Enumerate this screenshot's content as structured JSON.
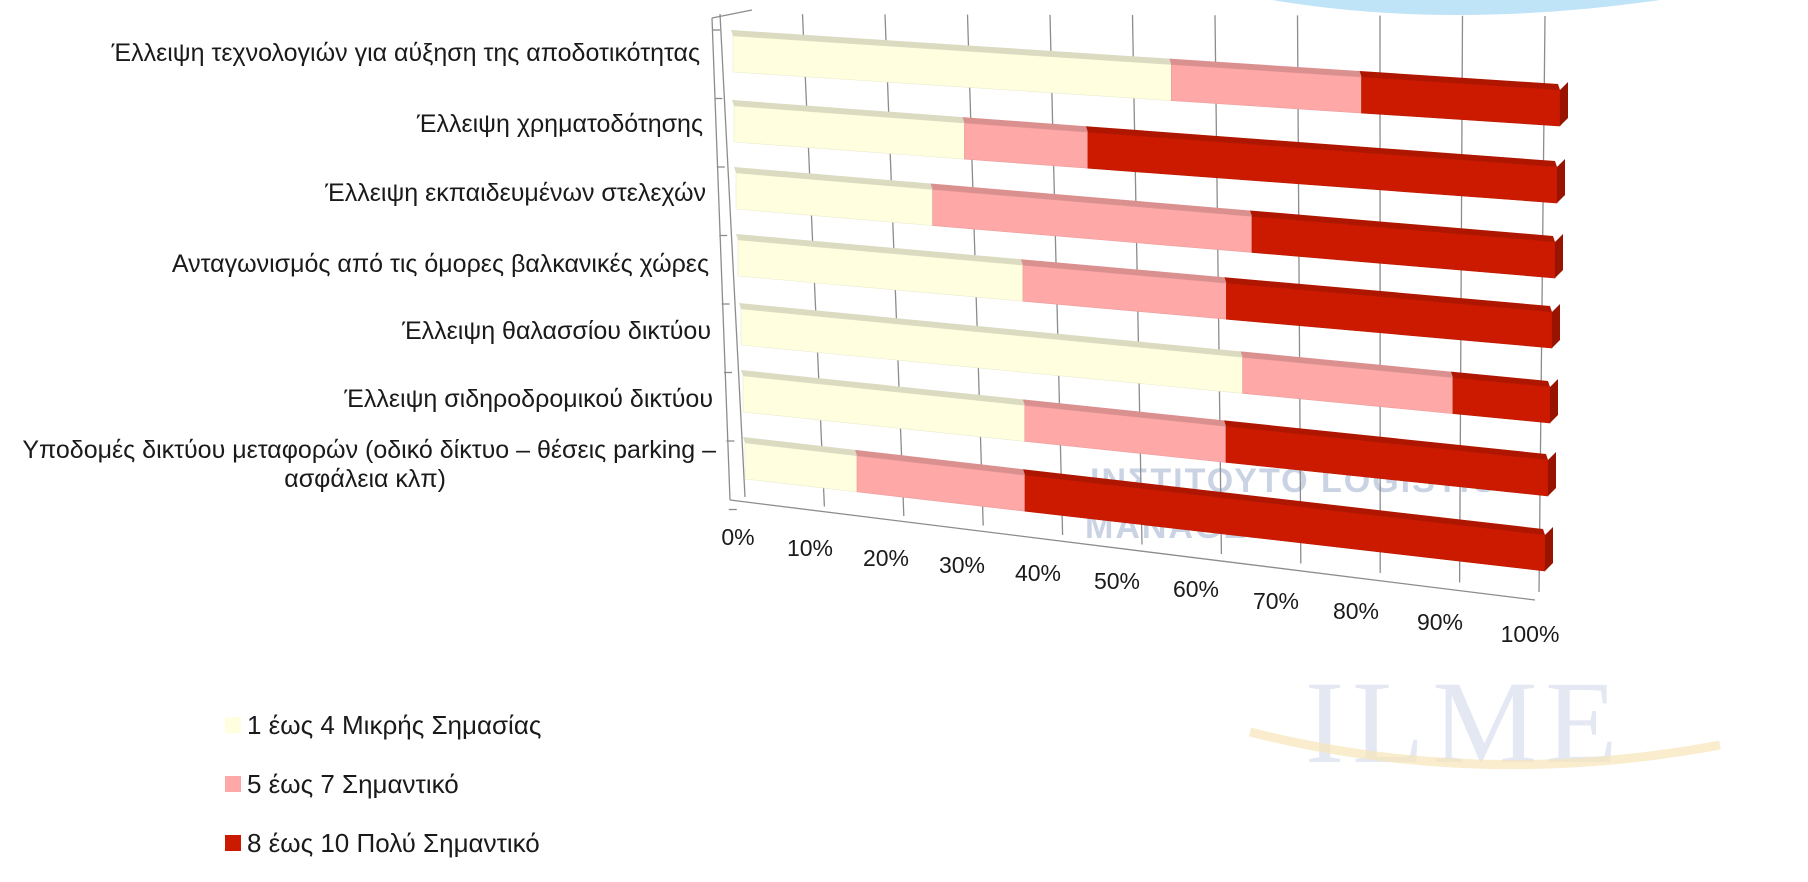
{
  "chart_data": {
    "type": "bar",
    "orientation": "horizontal",
    "stacked": "percent",
    "three_d": true,
    "categories": [
      "Έλλειψη τεχνολογιών για αύξηση της αποδοτικότητας",
      "Έλλειψη χρηματοδότησης",
      "Έλλειψη εκπαιδευμένων στελεχών",
      "Ανταγωνισμός από τις όμορες βαλκανικές χώρες",
      "Έλλειψη θαλασσίου δικτύου",
      "Έλλειψη σιδηροδρομικού δικτύου",
      "Υποδομές δικτύου μεταφορών (οδικό δίκτυο – θέσεις parking – ασφάλεια κλπ)"
    ],
    "category_lines": [
      [
        "Έλλειψη τεχνολογιών για αύξηση της αποδοτικότητας"
      ],
      [
        "Έλλειψη χρηματοδότησης"
      ],
      [
        "Έλλειψη εκπαιδευμένων στελεχών"
      ],
      [
        "Ανταγωνισμός από τις όμορες βαλκανικές χώρες"
      ],
      [
        "Έλλειψη θαλασσίου δικτύου"
      ],
      [
        "Έλλειψη σιδηροδρομικού δικτύου"
      ],
      [
        "Υποδομές δικτύου μεταφορών (οδικό δίκτυο – θέσεις parking –",
        "ασφάλεια κλπ)"
      ]
    ],
    "series": [
      {
        "name": "1 έως 4 Μικρής Σημασίας",
        "color": "#ffffe0",
        "values": [
          53,
          28,
          24,
          35,
          62,
          35,
          14
        ]
      },
      {
        "name": "5 έως 7 Σημαντικό",
        "color": "#ffa8a8",
        "values": [
          23,
          15,
          39,
          25,
          26,
          25,
          21
        ]
      },
      {
        "name": "8 έως 10 Πολύ Σημαντικό",
        "color": "#cc1a00",
        "values": [
          24,
          57,
          37,
          40,
          12,
          40,
          65
        ]
      }
    ],
    "x_ticks": [
      "0%",
      "10%",
      "20%",
      "30%",
      "40%",
      "50%",
      "60%",
      "70%",
      "80%",
      "90%",
      "100%"
    ],
    "xlim": [
      0,
      100
    ],
    "grid": true,
    "legend_position": "bottom-left"
  },
  "watermark": {
    "line1": "ΙΝΣΤΙΤΟΥΤΟ LOGISTICS",
    "line2": "MANAGEMENT",
    "logo": "ILME"
  }
}
